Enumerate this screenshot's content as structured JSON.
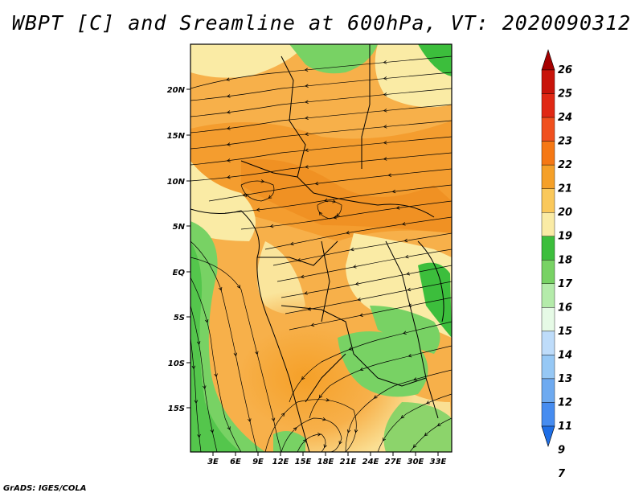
{
  "title": "WBPT [C] and Sreamline at 600hPa, VT: 2020090312",
  "credit": "GrADS: IGES/COLA",
  "axes": {
    "lat_ticks": [
      "20N",
      "15N",
      "10N",
      "5N",
      "EQ",
      "5S",
      "10S",
      "15S"
    ],
    "lon_ticks": [
      "3E",
      "6E",
      "9E",
      "12E",
      "15E",
      "18E",
      "21E",
      "24E",
      "27E",
      "30E",
      "33E"
    ]
  },
  "colorbar": {
    "levels": [
      "26",
      "25",
      "24",
      "23",
      "22",
      "21",
      "20",
      "19",
      "18",
      "17",
      "16",
      "15",
      "14",
      "13",
      "12",
      "11",
      "9",
      "7"
    ],
    "colors": [
      "#a50000",
      "#c8140a",
      "#e02814",
      "#f0501e",
      "#f57814",
      "#f5a028",
      "#fac85a",
      "#faeba5",
      "#3cbe3c",
      "#78d264",
      "#b4ebaa",
      "#e6fae6",
      "#bedcfa",
      "#96c8f5",
      "#6eaaf0",
      "#468cf0",
      "#1e6ee6"
    ]
  }
}
